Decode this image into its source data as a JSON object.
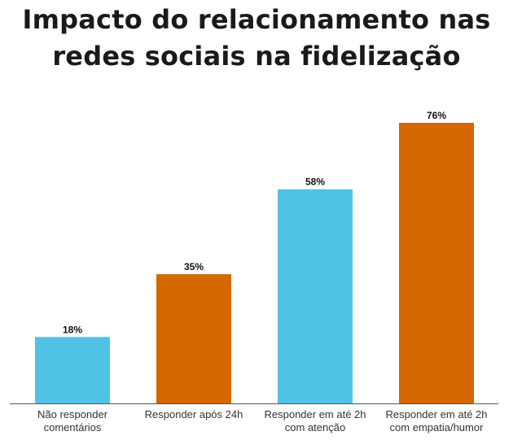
{
  "title_lines": [
    "Impacto do relacionamento nas",
    "redes sociais na fidelização"
  ],
  "colors": {
    "blue": "#4fc3e6",
    "orange": "#d46700",
    "axis": "#555555",
    "text": "#111111"
  },
  "chart_data": {
    "type": "bar",
    "title": "Impacto do relacionamento nas redes sociais na fidelização",
    "categories": [
      [
        "Não responder",
        "comentários"
      ],
      [
        "Responder após 24h"
      ],
      [
        "Responder em até 2h",
        "com atenção"
      ],
      [
        "Responder em até 2h",
        "com empatia/humor"
      ]
    ],
    "values": [
      18,
      35,
      58,
      76
    ],
    "value_labels": [
      "18%",
      "35%",
      "58%",
      "76%"
    ],
    "bar_colors": [
      "#4fc3e6",
      "#d46700",
      "#4fc3e6",
      "#d46700"
    ],
    "ylim": [
      0,
      76
    ],
    "xlabel": "",
    "ylabel": "",
    "grid": false,
    "legend": "none"
  }
}
